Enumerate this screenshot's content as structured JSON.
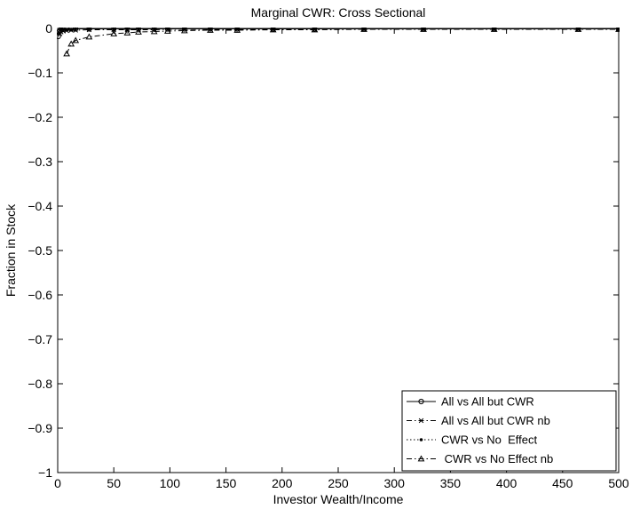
{
  "chart_data": {
    "type": "line",
    "title": "Marginal CWR: Cross Sectional",
    "xlabel": "Investor Wealth/Income",
    "ylabel": "Fraction in Stock",
    "xlim": [
      0,
      500
    ],
    "ylim": [
      -1,
      0
    ],
    "xticks": [
      0,
      50,
      100,
      150,
      200,
      250,
      300,
      350,
      400,
      450,
      500
    ],
    "yticks": [
      0,
      -0.1,
      -0.2,
      -0.3,
      -0.4,
      -0.5,
      -0.6,
      -0.7,
      -0.8,
      -0.9,
      -1
    ],
    "ytick_labels": [
      "0",
      "−0.1",
      "−0.2",
      "−0.3",
      "−0.4",
      "−0.5",
      "−0.6",
      "−0.7",
      "−0.8",
      "−0.9",
      "−1"
    ],
    "grid": false,
    "legend_position": "bottom-right",
    "series": [
      {
        "name": "All vs All but CWR",
        "line_style": "solid",
        "marker": "circle",
        "x": [
          0.5,
          1,
          2,
          3,
          5,
          8,
          12,
          16,
          28,
          50,
          62,
          72,
          86,
          98,
          113,
          136,
          160,
          192,
          229,
          273,
          326,
          389,
          464,
          500
        ],
        "y": [
          -0.018,
          -0.008,
          -0.004,
          -0.002,
          -0.002,
          -0.001,
          -0.001,
          -0.001,
          -0.001,
          -0.001,
          -0.001,
          -0.001,
          -0.001,
          -0.001,
          -0.001,
          -0.001,
          -0.001,
          -0.001,
          -0.001,
          -0.001,
          -0.001,
          -0.001,
          -0.001,
          -0.001
        ]
      },
      {
        "name": "All vs All but CWR nb",
        "line_style": "dashdot",
        "marker": "x",
        "x": [
          2,
          3,
          5,
          8,
          12,
          16,
          28,
          50,
          62,
          72,
          86,
          98,
          113,
          136,
          160,
          192,
          229,
          273,
          326,
          389,
          464,
          500
        ],
        "y": [
          -0.012,
          -0.008,
          -0.006,
          -0.005,
          -0.004,
          -0.004,
          -0.003,
          -0.003,
          -0.003,
          -0.003,
          -0.003,
          -0.002,
          -0.002,
          -0.002,
          -0.002,
          -0.002,
          -0.002,
          -0.002,
          -0.002,
          -0.002,
          -0.002,
          -0.002
        ]
      },
      {
        "name": "CWR vs No  Effect",
        "line_style": "dotted",
        "marker": "dot",
        "x": [
          3,
          5,
          8,
          12,
          16,
          28,
          50,
          62,
          72,
          86,
          98,
          113,
          136,
          160,
          192,
          229,
          273,
          326,
          389,
          464,
          500
        ],
        "y": [
          -0.003,
          -0.002,
          -0.002,
          -0.002,
          -0.001,
          -0.001,
          -0.001,
          -0.001,
          -0.001,
          -0.001,
          -0.001,
          -0.001,
          -0.001,
          -0.001,
          -0.001,
          -0.001,
          -0.001,
          -0.001,
          -0.001,
          -0.001,
          -0.001
        ]
      },
      {
        "name": " CWR vs No Effect nb",
        "line_style": "dashdot",
        "marker": "triangle",
        "x": [
          8,
          12,
          16,
          28,
          50,
          62,
          72,
          86,
          98,
          113,
          136,
          160,
          192,
          229,
          273,
          326,
          389,
          464,
          500
        ],
        "y": [
          -0.057,
          -0.035,
          -0.027,
          -0.019,
          -0.012,
          -0.01,
          -0.008,
          -0.007,
          -0.006,
          -0.005,
          -0.004,
          -0.004,
          -0.003,
          -0.003,
          -0.002,
          -0.002,
          -0.002,
          -0.002,
          -0.002
        ]
      }
    ]
  }
}
